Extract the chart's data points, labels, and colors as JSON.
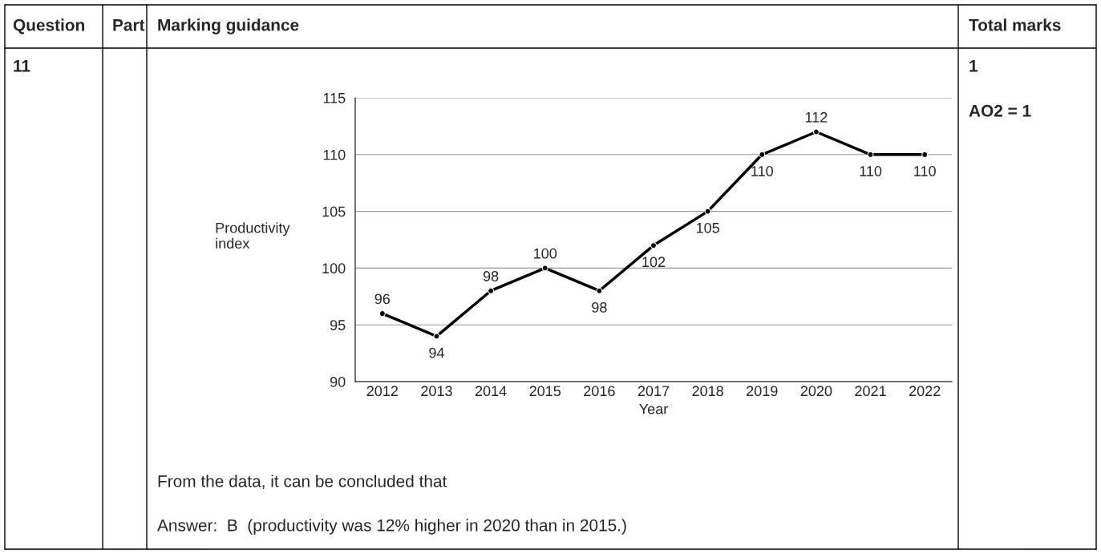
{
  "chart_data": {
    "type": "line",
    "xlabel": "Year",
    "ylabel": "Productivity\nindex",
    "categories": [
      "2012",
      "2013",
      "2014",
      "2015",
      "2016",
      "2017",
      "2018",
      "2019",
      "2020",
      "2021",
      "2022"
    ],
    "series": [
      {
        "color": "#000000",
        "values": [
          96,
          94,
          98,
          100,
          98,
          102,
          105,
          110,
          112,
          110,
          110
        ]
      }
    ],
    "ylim": [
      90,
      115
    ],
    "yticks": [
      90,
      95,
      100,
      105,
      110,
      115
    ],
    "grid": "y",
    "marker": "circle",
    "line_style": "solid",
    "data_labels": true,
    "legend": false,
    "annotations": [
      "Question",
      "Part",
      "Marking guidance",
      "Total marks",
      "11",
      "1",
      "AO2 = 1",
      "From the data, it can be concluded that",
      "Answer:  B  (productivity was 12% higher in 2020 than in 2015.)"
    ]
  }
}
